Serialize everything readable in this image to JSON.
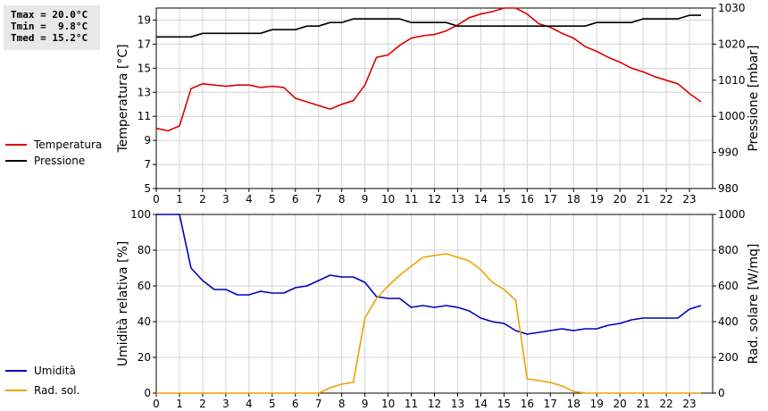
{
  "stats": {
    "tmax": "Tmax = 20.0°C",
    "tmin": "Tmin =  9.8°C",
    "tmed": "Tmed = 15.2°C"
  },
  "chart_data": [
    {
      "type": "line",
      "title": "",
      "xlabel": "",
      "x_ticks": [
        0,
        1,
        2,
        3,
        4,
        5,
        6,
        7,
        8,
        9,
        10,
        11,
        12,
        13,
        14,
        15,
        16,
        17,
        18,
        19,
        20,
        21,
        22,
        23
      ],
      "ylabel": "Temperatura [°C]",
      "ylim": [
        5,
        20
      ],
      "yticks": [
        5,
        7,
        9,
        11,
        13,
        15,
        17,
        19
      ],
      "y2label": "Pressione [mbar]",
      "y2lim": [
        980,
        1030
      ],
      "y2ticks": [
        980,
        990,
        1000,
        1010,
        1020,
        1030
      ],
      "grid": true,
      "legend_position": "left",
      "series": [
        {
          "name": "Temperatura",
          "axis": "left",
          "color": "#dd0000",
          "x": [
            0,
            0.5,
            1,
            1.5,
            2,
            2.5,
            3,
            3.5,
            4,
            4.5,
            5,
            5.5,
            6,
            6.5,
            7,
            7.5,
            8,
            8.5,
            9,
            9.5,
            10,
            10.5,
            11,
            11.5,
            12,
            12.5,
            13,
            13.5,
            14,
            14.5,
            15,
            15.5,
            16,
            16.5,
            17,
            17.5,
            18,
            18.5,
            19,
            19.5,
            20,
            20.5,
            21,
            21.5,
            22,
            22.5,
            23,
            23.5
          ],
          "values": [
            10.0,
            9.8,
            10.2,
            13.3,
            13.7,
            13.6,
            13.5,
            13.6,
            13.6,
            13.4,
            13.5,
            13.4,
            12.5,
            12.2,
            11.9,
            11.6,
            12.0,
            12.3,
            13.6,
            15.9,
            16.1,
            16.9,
            17.5,
            17.7,
            17.8,
            18.1,
            18.6,
            19.2,
            19.5,
            19.7,
            20.0,
            20.0,
            19.5,
            18.7,
            18.4,
            17.9,
            17.5,
            16.8,
            16.4,
            15.9,
            15.5,
            15.0,
            14.7,
            14.3,
            14.0,
            13.7,
            12.9,
            12.2
          ]
        },
        {
          "name": "Pressione",
          "axis": "right",
          "color": "#000000",
          "x": [
            0,
            1,
            1.5,
            2,
            2.5,
            3,
            3.5,
            4,
            4.5,
            5,
            5.5,
            6,
            6.5,
            7,
            7.5,
            8,
            8.5,
            9,
            9.5,
            10,
            10.5,
            11,
            11.5,
            12,
            12.5,
            13,
            13.5,
            14,
            14.5,
            15,
            15.5,
            16,
            16.5,
            17,
            17.5,
            18,
            18.5,
            19,
            19.5,
            20,
            20.5,
            21,
            21.5,
            22,
            22.5,
            23,
            23.5
          ],
          "values": [
            1022,
            1022,
            1022,
            1023,
            1023,
            1023,
            1023,
            1023,
            1023,
            1024,
            1024,
            1024,
            1025,
            1025,
            1026,
            1026,
            1027,
            1027,
            1027,
            1027,
            1027,
            1026,
            1026,
            1026,
            1026,
            1025,
            1025,
            1025,
            1025,
            1025,
            1025,
            1025,
            1025,
            1025,
            1025,
            1025,
            1025,
            1026,
            1026,
            1026,
            1026,
            1027,
            1027,
            1027,
            1027,
            1028,
            1028
          ]
        }
      ]
    },
    {
      "type": "line",
      "title": "",
      "xlabel": "",
      "x_ticks": [
        0,
        1,
        2,
        3,
        4,
        5,
        6,
        7,
        8,
        9,
        10,
        11,
        12,
        13,
        14,
        15,
        16,
        17,
        18,
        19,
        20,
        21,
        22,
        23
      ],
      "ylabel": "Umidità relativa [%]",
      "ylim": [
        0,
        100
      ],
      "yticks": [
        0,
        20,
        40,
        60,
        80,
        100
      ],
      "y2label": "Rad. solare [W/mq]",
      "y2lim": [
        0,
        1000
      ],
      "y2ticks": [
        0,
        200,
        400,
        600,
        800,
        1000
      ],
      "grid": true,
      "legend_position": "left",
      "series": [
        {
          "name": "Umidità",
          "axis": "left",
          "color": "#0000bb",
          "x": [
            0,
            0.5,
            1,
            1.5,
            2,
            2.5,
            3,
            3.5,
            4,
            4.5,
            5,
            5.5,
            6,
            6.5,
            7,
            7.5,
            8,
            8.5,
            9,
            9.5,
            10,
            10.5,
            11,
            11.5,
            12,
            12.5,
            13,
            13.5,
            14,
            14.5,
            15,
            15.5,
            16,
            16.5,
            17,
            17.5,
            18,
            18.5,
            19,
            19.5,
            20,
            20.5,
            21,
            21.5,
            22,
            22.5,
            23,
            23.5
          ],
          "values": [
            100,
            100,
            100,
            70,
            63,
            58,
            58,
            55,
            55,
            57,
            56,
            56,
            59,
            60,
            63,
            66,
            65,
            65,
            62,
            54,
            53,
            53,
            48,
            49,
            48,
            49,
            48,
            46,
            42,
            40,
            39,
            35,
            33,
            34,
            35,
            36,
            35,
            36,
            36,
            38,
            39,
            41,
            42,
            42,
            42,
            42,
            47,
            49
          ]
        },
        {
          "name": "Rad. sol.",
          "axis": "right",
          "color": "#f0a000",
          "x": [
            0,
            1,
            2,
            3,
            4,
            5,
            6,
            7,
            7.5,
            8,
            8.5,
            9,
            9.5,
            10,
            10.5,
            11,
            11.5,
            12,
            12.5,
            13,
            13.5,
            14,
            14.5,
            15,
            15.5,
            16,
            16.5,
            17,
            17.5,
            18,
            18.5,
            19,
            20,
            21,
            22,
            23,
            23.5
          ],
          "values": [
            0,
            0,
            0,
            0,
            0,
            0,
            0,
            0,
            30,
            50,
            60,
            420,
            530,
            600,
            660,
            710,
            760,
            770,
            780,
            760,
            740,
            690,
            620,
            580,
            520,
            80,
            70,
            60,
            40,
            10,
            0,
            0,
            0,
            0,
            0,
            0,
            0
          ]
        }
      ]
    }
  ]
}
